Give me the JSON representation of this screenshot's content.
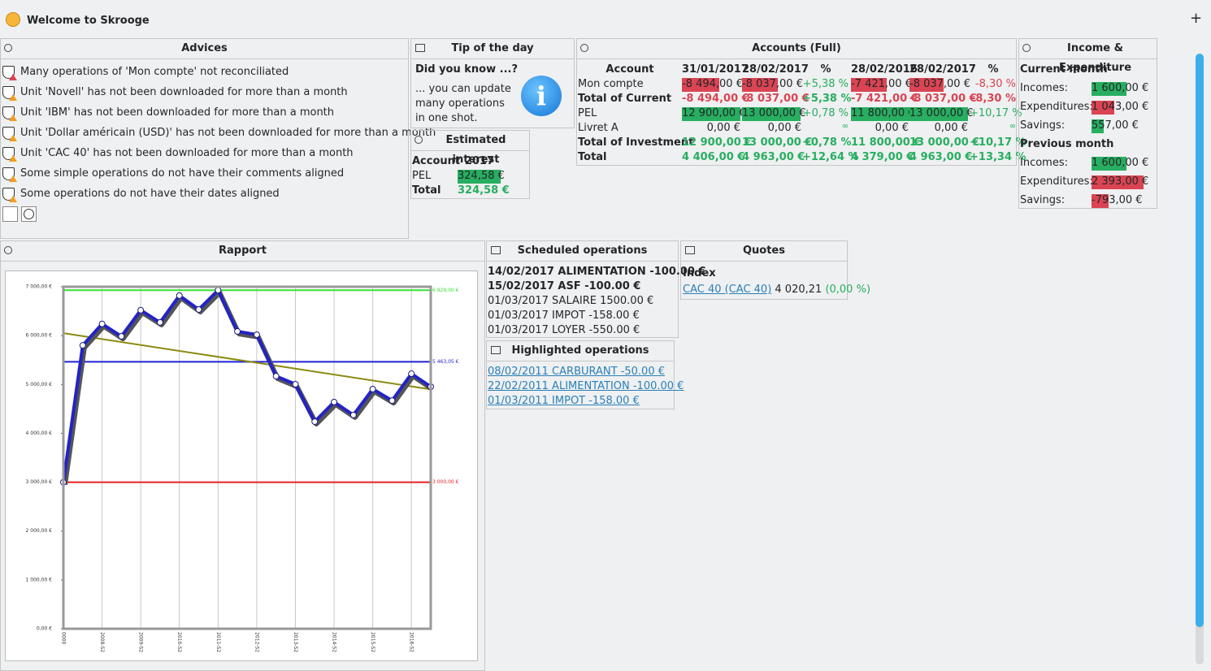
{
  "header": {
    "title": "Welcome to Skrooge",
    "add_button": "+"
  },
  "advices": {
    "title": "Advices",
    "items": [
      "Many operations of 'Mon compte' not reconciliated",
      "Unit 'Novell' has not been downloaded for more than a month",
      "Unit 'IBM' has not been downloaded for more than a month",
      "Unit 'Dollar américain (USD)' has not been downloaded for more than a month",
      "Unit 'CAC 40' has not been downloaded for more than a month",
      "Some simple operations do not have their comments aligned",
      "Some operations do not have their dates aligned"
    ]
  },
  "tip": {
    "title": "Tip of the day",
    "heading": "Did you know ...?",
    "text": "... you can update many operations in one shot."
  },
  "estimated_interest": {
    "title": "Estimated interest",
    "columns": [
      "Account",
      "2017"
    ],
    "rows": [
      [
        "PEL",
        "324,58 €"
      ],
      [
        "Total",
        "324,58 €"
      ]
    ]
  },
  "accounts": {
    "title": "Accounts (Full)",
    "columns": [
      "Account",
      "31/01/2017",
      "28/02/2017",
      "%",
      "28/02/2016",
      "28/02/2017",
      "%"
    ],
    "rows": [
      [
        "Mon compte",
        "-8 494,00 €",
        "-8 037,00 €",
        "+5,38 %",
        "-7 421,00 €",
        "-8 037,00 €",
        "-8,30 %"
      ],
      [
        "Total of Current",
        "-8 494,00 €",
        "-8 037,00 €",
        "+5,38 %",
        "-7 421,00 €",
        "-8 037,00 €",
        "-8,30 %"
      ],
      [
        "PEL",
        "12 900,00 €",
        "13 000,00 €",
        "+0,78 %",
        "11 800,00 €",
        "13 000,00 €",
        "+10,17 %"
      ],
      [
        "Livret A",
        "0,00 €",
        "0,00 €",
        "∞",
        "0,00 €",
        "0,00 €",
        "∞"
      ],
      [
        "Total of Investment",
        "12 900,00 €",
        "13 000,00 €",
        "+0,78 %",
        "11 800,00 €",
        "13 000,00 €",
        "+10,17 %"
      ],
      [
        "Total",
        "4 406,00 €",
        "4 963,00 €",
        "+12,64 %",
        "4 379,00 €",
        "4 963,00 €",
        "+13,34 %"
      ]
    ]
  },
  "income": {
    "title": "Income & Expenditure",
    "sections": [
      {
        "title": "Current month",
        "rows": [
          [
            "Incomes:",
            "1 600,00 €"
          ],
          [
            "Expenditures:",
            "1 043,00 €"
          ],
          [
            "Savings:",
            "557,00 €"
          ]
        ]
      },
      {
        "title": "Previous month",
        "rows": [
          [
            "Incomes:",
            "1 600,00 €"
          ],
          [
            "Expenditures:",
            "2 393,00 €"
          ],
          [
            "Savings:",
            "-793,00 €"
          ]
        ]
      }
    ]
  },
  "scheduled": {
    "title": "Scheduled operations",
    "items": [
      "14/02/2017 ALIMENTATION -100.00 €",
      "15/02/2017 ASF -100.00 €",
      "01/03/2017 SALAIRE 1500.00 €",
      "01/03/2017 IMPOT -158.00 €",
      "01/03/2017 LOYER -550.00 €"
    ]
  },
  "highlighted": {
    "title": "Highlighted operations",
    "items": [
      "08/02/2011 CARBURANT -50.00 €",
      "22/02/2011 ALIMENTATION -100.00 €",
      "01/03/2011 IMPOT -158.00 €"
    ]
  },
  "quotes": {
    "title": "Quotes",
    "heading": "Index",
    "link": "CAC 40 (CAC 40)",
    "value": "4 020,21",
    "change": "(0,00 %)"
  },
  "chart_data": {
    "type": "line",
    "title": "Rapport",
    "categories": [
      "0000",
      null,
      "2008-S2",
      null,
      "2009-S2",
      null,
      "2010-S2",
      null,
      "2011-S2",
      null,
      "2012-S2",
      null,
      "2013-S2",
      null,
      "2014-S2",
      null,
      "2015-S2",
      null,
      "2016-S2",
      null
    ],
    "series": [
      {
        "color": "#2323c8",
        "values": [
          3000,
          5800,
          6240,
          5985,
          6520,
          6270,
          6820,
          6535,
          6929,
          6085,
          6020,
          5170,
          5005,
          4240,
          4640,
          4375,
          4905,
          4670,
          5220,
          4955
        ]
      }
    ],
    "ylim": [
      0,
      7000
    ],
    "yticks": [
      {
        "value": 0,
        "label": "0,00 €"
      },
      {
        "value": 1000,
        "label": "1 000,00 €"
      },
      {
        "value": 2000,
        "label": "2 000,00 €"
      },
      {
        "value": 3000,
        "label": "3 000,00 €"
      },
      {
        "value": 4000,
        "label": "4 000,00 €"
      },
      {
        "value": 5000,
        "label": "5 000,00 €"
      },
      {
        "value": 6000,
        "label": "6 000,00 €"
      },
      {
        "value": 7000,
        "label": "7 000,00 €"
      }
    ],
    "reference_lines": [
      {
        "value": 6929,
        "label": "6 929,00 €",
        "color": "#33e033"
      },
      {
        "value": 5463.05,
        "label": "5 463,05 €",
        "color": "#2020d8"
      },
      {
        "value": 3000,
        "label": "3 000,00 €",
        "color": "#e82020"
      }
    ],
    "trend": {
      "values": [
        6050,
        4900
      ],
      "color": "#8a8a10"
    },
    "grid": true
  }
}
